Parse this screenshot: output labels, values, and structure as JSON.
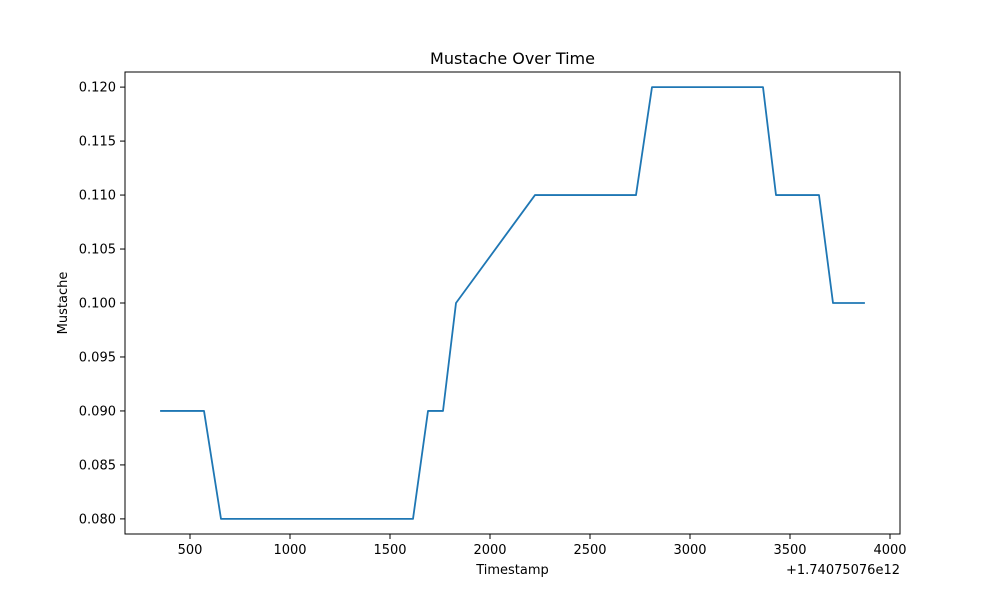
{
  "chart_data": {
    "type": "line",
    "title": "Mustache Over Time",
    "xlabel": "Timestamp",
    "ylabel": "Mustache",
    "x_offset_label": "+1.74075076e12",
    "xlim": [
      175,
      4050
    ],
    "ylim": [
      0.0786,
      0.1214
    ],
    "xticks": [
      500,
      1000,
      1500,
      2000,
      2500,
      3000,
      3500,
      4000
    ],
    "xtick_labels": [
      "500",
      "1000",
      "1500",
      "2000",
      "2500",
      "3000",
      "3500",
      "4000"
    ],
    "yticks": [
      0.08,
      0.085,
      0.09,
      0.095,
      0.1,
      0.105,
      0.11,
      0.115,
      0.12
    ],
    "ytick_labels": [
      "0.080",
      "0.085",
      "0.090",
      "0.095",
      "0.100",
      "0.105",
      "0.110",
      "0.115",
      "0.120"
    ],
    "grid": false,
    "series": [
      {
        "color": "#1f77b4",
        "x": [
          355,
          570,
          655,
          1615,
          1690,
          1765,
          1830,
          2225,
          2730,
          2810,
          3365,
          3430,
          3645,
          3715,
          3870
        ],
        "y": [
          0.09,
          0.09,
          0.08,
          0.08,
          0.09,
          0.09,
          0.1,
          0.11,
          0.11,
          0.12,
          0.12,
          0.11,
          0.11,
          0.1,
          0.1
        ]
      }
    ]
  }
}
